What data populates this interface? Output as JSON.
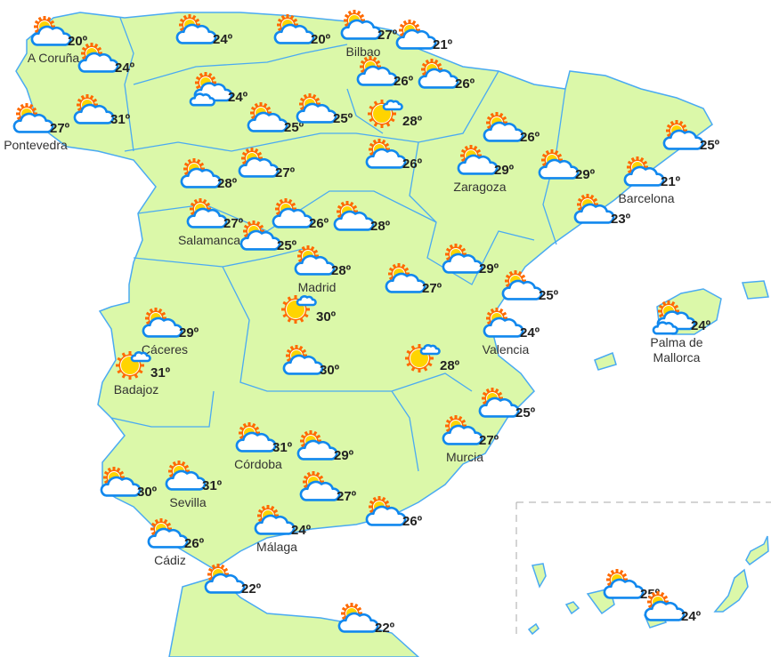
{
  "colors": {
    "land": "#dbf8a9",
    "border": "#4aaaf2",
    "sun": "#ffd400",
    "sun_rays": "#ff6a00",
    "cloud_outline": "#1188ee",
    "text": "#222222"
  },
  "stations": [
    {
      "temp": "20º",
      "city": "A Coruña",
      "icon": "sun-cloud-icon"
    },
    {
      "temp": "24º",
      "city": "",
      "icon": "sun-cloud-icon"
    },
    {
      "temp": "27º",
      "city": "Pontevedra",
      "icon": "sun-cloud-icon"
    },
    {
      "temp": "31º",
      "city": "",
      "icon": "sun-cloud-icon"
    },
    {
      "temp": "24º",
      "city": "",
      "icon": "sun-cloud-icon"
    },
    {
      "temp": "24º",
      "city": "",
      "icon": "sun-two-clouds-icon"
    },
    {
      "temp": "20º",
      "city": "",
      "icon": "sun-cloud-icon"
    },
    {
      "temp": "27º",
      "city": "Bilbao",
      "icon": "sun-cloud-icon"
    },
    {
      "temp": "21º",
      "city": "",
      "icon": "sun-cloud-icon"
    },
    {
      "temp": "26º",
      "city": "",
      "icon": "sun-cloud-icon"
    },
    {
      "temp": "26º",
      "city": "",
      "icon": "sun-cloud-icon"
    },
    {
      "temp": "25º",
      "city": "",
      "icon": "sun-cloud-icon"
    },
    {
      "temp": "25º",
      "city": "",
      "icon": "sun-cloud-icon"
    },
    {
      "temp": "28º",
      "city": "",
      "icon": "sun-small-cloud-icon"
    },
    {
      "temp": "26º",
      "city": "",
      "icon": "sun-cloud-icon"
    },
    {
      "temp": "26º",
      "city": "",
      "icon": "sun-cloud-icon"
    },
    {
      "temp": "29º",
      "city": "Zaragoza",
      "icon": "sun-cloud-icon"
    },
    {
      "temp": "29º",
      "city": "",
      "icon": "sun-cloud-icon"
    },
    {
      "temp": "21º",
      "city": "Barcelona",
      "icon": "sun-cloud-icon"
    },
    {
      "temp": "25º",
      "city": "",
      "icon": "sun-cloud-icon"
    },
    {
      "temp": "23º",
      "city": "",
      "icon": "sun-cloud-icon"
    },
    {
      "temp": "28º",
      "city": "",
      "icon": "sun-cloud-icon"
    },
    {
      "temp": "27º",
      "city": "",
      "icon": "sun-cloud-icon"
    },
    {
      "temp": "27º",
      "city": "Salamanca",
      "icon": "sun-cloud-icon"
    },
    {
      "temp": "25º",
      "city": "",
      "icon": "sun-cloud-icon"
    },
    {
      "temp": "26º",
      "city": "",
      "icon": "sun-cloud-icon"
    },
    {
      "temp": "28º",
      "city": "",
      "icon": "sun-cloud-icon"
    },
    {
      "temp": "28º",
      "city": "Madrid",
      "icon": "sun-cloud-icon"
    },
    {
      "temp": "27º",
      "city": "",
      "icon": "sun-cloud-icon"
    },
    {
      "temp": "29º",
      "city": "",
      "icon": "sun-cloud-icon"
    },
    {
      "temp": "25º",
      "city": "",
      "icon": "sun-cloud-icon"
    },
    {
      "temp": "24º",
      "city": "Valencia",
      "icon": "sun-cloud-icon"
    },
    {
      "temp": "24º",
      "city": "Palma de\nMallorca",
      "icon": "sun-two-clouds-icon"
    },
    {
      "temp": "29º",
      "city": "Cáceres",
      "icon": "sun-cloud-icon"
    },
    {
      "temp": "31º",
      "city": "Badajoz",
      "icon": "sun-small-cloud-icon"
    },
    {
      "temp": "30º",
      "city": "",
      "icon": "sun-small-cloud-icon"
    },
    {
      "temp": "30º",
      "city": "",
      "icon": "sun-cloud-icon"
    },
    {
      "temp": "28º",
      "city": "",
      "icon": "sun-small-cloud-icon"
    },
    {
      "temp": "25º",
      "city": "",
      "icon": "sun-cloud-icon"
    },
    {
      "temp": "27º",
      "city": "Murcia",
      "icon": "sun-cloud-icon"
    },
    {
      "temp": "31º",
      "city": "Córdoba",
      "icon": "sun-cloud-icon"
    },
    {
      "temp": "29º",
      "city": "",
      "icon": "sun-cloud-icon"
    },
    {
      "temp": "31º",
      "city": "Sevilla",
      "icon": "sun-cloud-icon"
    },
    {
      "temp": "30º",
      "city": "",
      "icon": "sun-cloud-icon"
    },
    {
      "temp": "27º",
      "city": "",
      "icon": "sun-cloud-icon"
    },
    {
      "temp": "26º",
      "city": "",
      "icon": "sun-cloud-icon"
    },
    {
      "temp": "24º",
      "city": "Málaga",
      "icon": "sun-cloud-icon"
    },
    {
      "temp": "26º",
      "city": "Cádiz",
      "icon": "sun-cloud-icon"
    },
    {
      "temp": "22º",
      "city": "",
      "icon": "sun-cloud-icon"
    },
    {
      "temp": "22º",
      "city": "",
      "icon": "sun-cloud-icon"
    },
    {
      "temp": "25º",
      "city": "",
      "icon": "sun-cloud-icon"
    },
    {
      "temp": "24º",
      "city": "",
      "icon": "sun-cloud-icon"
    }
  ]
}
